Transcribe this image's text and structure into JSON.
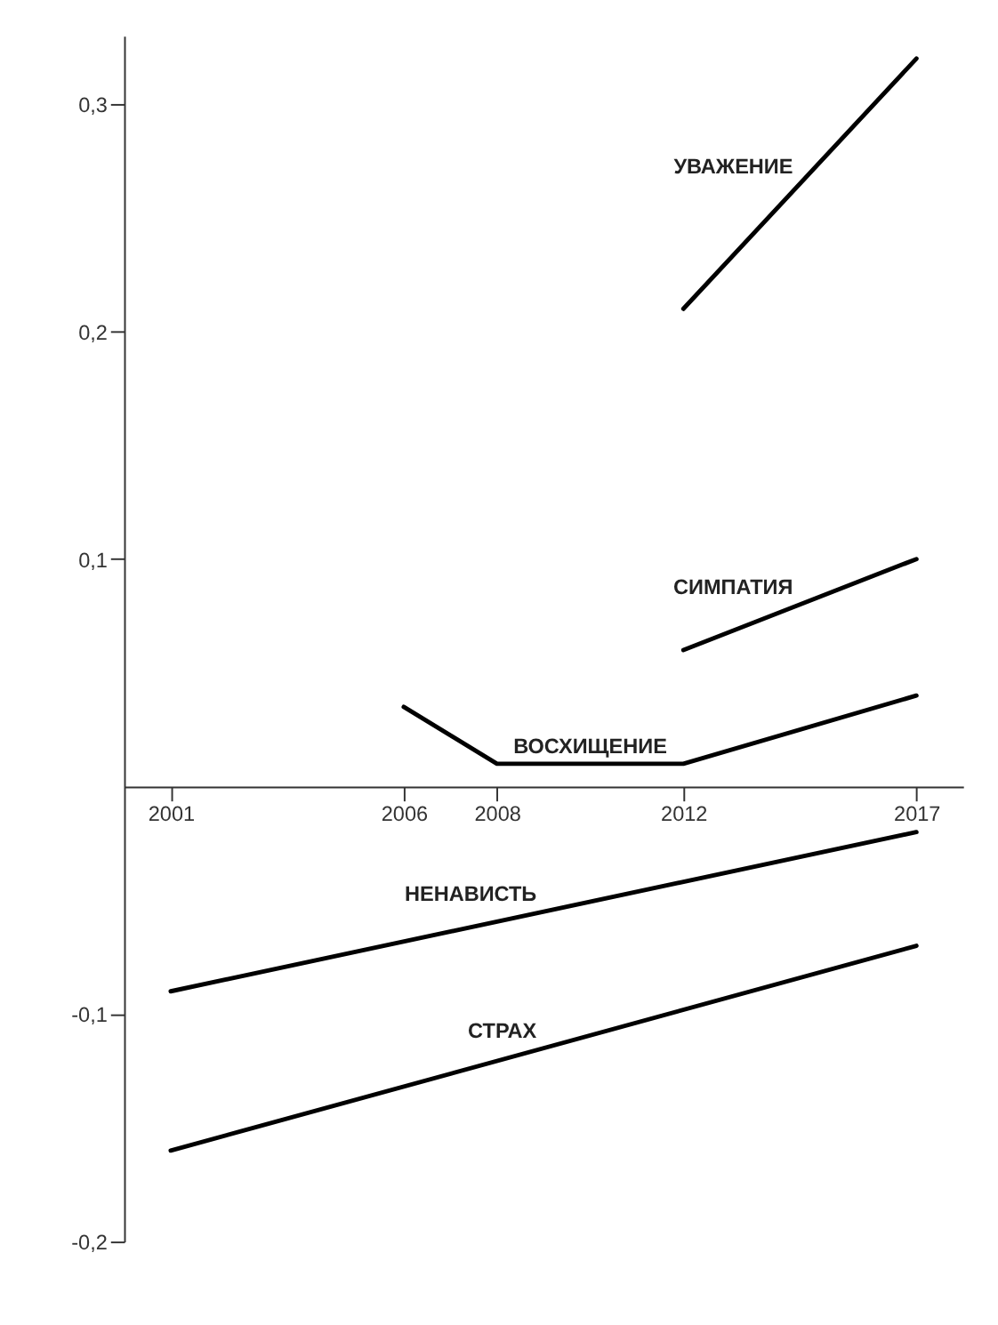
{
  "chart_data": {
    "type": "line",
    "xlim": [
      2000,
      2018
    ],
    "ylim": [
      -0.2,
      0.33
    ],
    "xticks": [
      2001,
      2006,
      2008,
      2012,
      2017
    ],
    "yticks": [
      {
        "value": -0.2,
        "label": "-0,2"
      },
      {
        "value": -0.1,
        "label": "-0,1"
      },
      {
        "value": 0.1,
        "label": "0,1"
      },
      {
        "value": 0.2,
        "label": "0,2"
      },
      {
        "value": 0.3,
        "label": "0,3"
      }
    ],
    "grid": false,
    "legend": false,
    "marker": "none",
    "line_style": "solid",
    "series": [
      {
        "name": "УВАЖЕНИЕ",
        "color": "#000000",
        "x": [
          2012,
          2017
        ],
        "values": [
          0.21,
          0.32
        ]
      },
      {
        "name": "СИМПАТИЯ",
        "color": "#000000",
        "x": [
          2012,
          2017
        ],
        "values": [
          0.06,
          0.1
        ]
      },
      {
        "name": "ВОСХИЩЕНИЕ",
        "color": "#000000",
        "x": [
          2006,
          2008,
          2012,
          2017
        ],
        "values": [
          0.035,
          0.01,
          0.01,
          0.04
        ]
      },
      {
        "name": "НЕНАВИСТЬ",
        "color": "#000000",
        "x": [
          2001,
          2017
        ],
        "values": [
          -0.09,
          -0.02
        ]
      },
      {
        "name": "СТРАХ",
        "color": "#000000",
        "x": [
          2001,
          2017
        ],
        "values": [
          -0.16,
          -0.07
        ]
      }
    ]
  }
}
